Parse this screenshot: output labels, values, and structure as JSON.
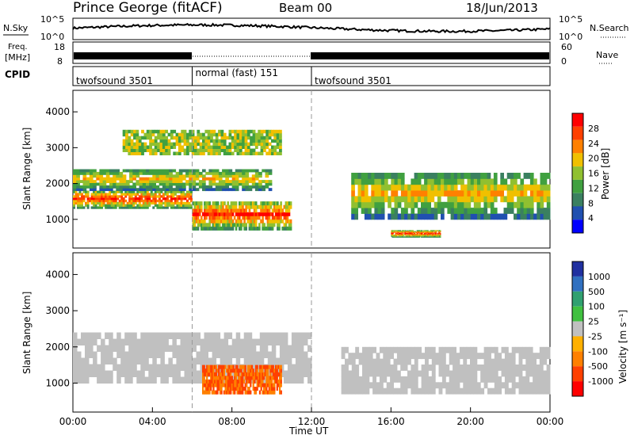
{
  "header": {
    "station": "Prince George (fitACF)",
    "beam": "Beam 00",
    "date": "18/Jun/2013"
  },
  "noise_panel": {
    "left_label": "N.Sky",
    "right_label": "N.Search",
    "left_ticks": [
      "10^5",
      "10^0"
    ],
    "right_ticks": [
      "10^5",
      "10^0"
    ]
  },
  "freq_panel": {
    "label_line1": "Freq.",
    "label_line2": "[MHz]",
    "right_label": "Nave",
    "left_ticks": [
      "18",
      "8"
    ],
    "right_ticks": [
      "60",
      "0"
    ]
  },
  "cpid": {
    "label": "CPID",
    "segments": [
      {
        "name": "twofsound 3501",
        "start_h": 0,
        "end_h": 6.0
      },
      {
        "name": "normal (fast) 151",
        "start_h": 6.0,
        "end_h": 12.0
      },
      {
        "name": "twofsound 3501",
        "start_h": 12.0,
        "end_h": 24.0
      }
    ]
  },
  "colors": {
    "power": [
      "#0000ff",
      "#2050b0",
      "#3a8060",
      "#40a040",
      "#90c030",
      "#f0c000",
      "#ff8000",
      "#ff4000",
      "#ff0000"
    ],
    "velocity": [
      "#2030a0",
      "#3070c0",
      "#30a070",
      "#40c040",
      "#c0c0c0",
      "#ffb000",
      "#ff8000",
      "#ff4000",
      "#ff0000"
    ]
  },
  "chart_data": [
    {
      "type": "heatmap",
      "title": "Power",
      "ylabel": "Slant Range [km]",
      "ylim": [
        200,
        4600
      ],
      "yticks": [
        1000,
        2000,
        3000,
        4000
      ],
      "xlim": [
        0,
        24
      ],
      "colorbar": {
        "label": "Power [dB]",
        "range": [
          0,
          32
        ],
        "ticks": [
          "4",
          "8",
          "12",
          "16",
          "20",
          "24",
          "28"
        ]
      },
      "bands": [
        {
          "t0": 0.0,
          "t1": 6.0,
          "r0": 1300,
          "r1": 1800,
          "level": "high"
        },
        {
          "t0": 0.0,
          "t1": 10.0,
          "r0": 1800,
          "r1": 2400,
          "level": "medium"
        },
        {
          "t0": 6.0,
          "t1": 11.0,
          "r0": 700,
          "r1": 1500,
          "level": "high"
        },
        {
          "t0": 2.5,
          "t1": 10.5,
          "r0": 2800,
          "r1": 3500,
          "level": "low"
        },
        {
          "t0": 14.0,
          "t1": 24.0,
          "r0": 1000,
          "r1": 2300,
          "level": "medium"
        },
        {
          "t0": 16.0,
          "t1": 18.5,
          "r0": 500,
          "r1": 700,
          "level": "high"
        }
      ]
    },
    {
      "type": "heatmap",
      "title": "Velocity",
      "ylabel": "Slant Range [km]",
      "xlabel": "Time UT",
      "ylim": [
        200,
        4600
      ],
      "yticks": [
        1000,
        2000,
        3000,
        4000
      ],
      "xlim": [
        0,
        24
      ],
      "xticks": [
        "00:00",
        "04:00",
        "08:00",
        "12:00",
        "16:00",
        "20:00",
        "00:00"
      ],
      "colorbar": {
        "label": "Velocity [m s⁻¹]",
        "ticks": [
          "1000",
          "500",
          "100",
          "25",
          "-25",
          "-100",
          "-500",
          "-1000"
        ]
      },
      "bands": [
        {
          "t0": 0.0,
          "t1": 12.0,
          "r0": 1000,
          "r1": 2400,
          "level": "ground"
        },
        {
          "t0": 6.5,
          "t1": 10.5,
          "r0": 700,
          "r1": 1500,
          "level": "away"
        },
        {
          "t0": 13.5,
          "t1": 24.0,
          "r0": 700,
          "r1": 2000,
          "level": "ground"
        }
      ]
    }
  ]
}
